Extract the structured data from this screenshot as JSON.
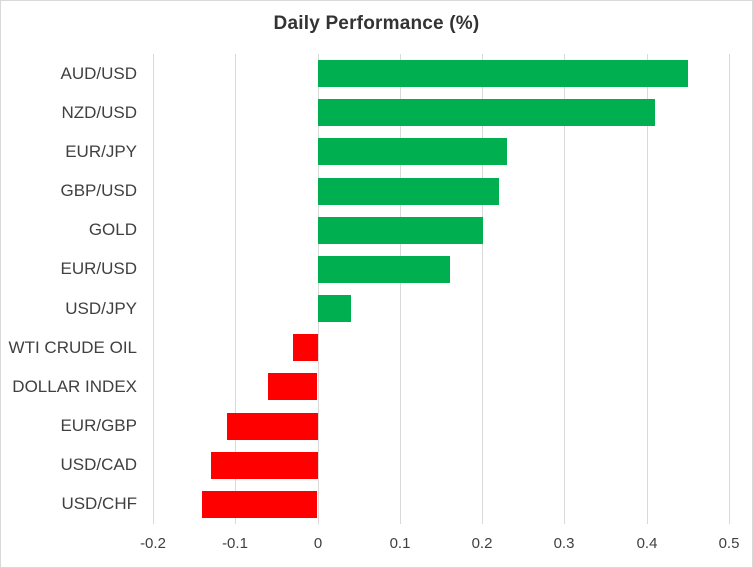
{
  "chart_data": {
    "type": "bar",
    "orientation": "horizontal",
    "title": "Daily Performance (%)",
    "categories": [
      "AUD/USD",
      "NZD/USD",
      "EUR/JPY",
      "GBP/USD",
      "GOLD",
      "EUR/USD",
      "USD/JPY",
      "WTI CRUDE OIL",
      "DOLLAR INDEX",
      "EUR/GBP",
      "USD/CAD",
      "USD/CHF"
    ],
    "values": [
      0.45,
      0.41,
      0.23,
      0.22,
      0.2,
      0.16,
      0.04,
      -0.03,
      -0.06,
      -0.11,
      -0.13,
      -0.14
    ],
    "xlabel": "",
    "ylabel": "",
    "xlim": [
      -0.2,
      0.5
    ],
    "x_ticks": [
      -0.2,
      -0.1,
      0,
      0.1,
      0.2,
      0.3,
      0.4,
      0.5
    ],
    "x_tick_labels": [
      "-0.2",
      "-0.1",
      "0",
      "0.1",
      "0.2",
      "0.3",
      "0.4",
      "0.5"
    ],
    "grid": true,
    "legend_position": "none",
    "colors": {
      "positive": "#00B050",
      "negative": "#FF0000",
      "gridline": "#D9D9D9",
      "axis_text": "#404040",
      "title_text": "#333333",
      "background": "#FFFFFF",
      "border": "#D9D9D9"
    }
  }
}
